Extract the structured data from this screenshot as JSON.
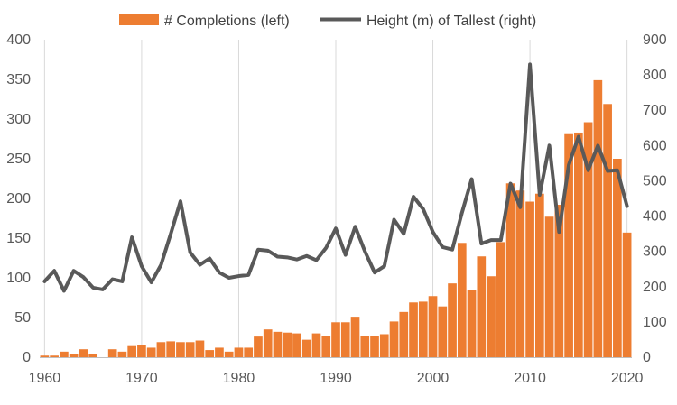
{
  "chart_data": {
    "type": "bar+line",
    "title": "",
    "xlabel": "",
    "ylabel_left": "",
    "ylabel_right": "",
    "x": [
      1960,
      1961,
      1962,
      1963,
      1964,
      1965,
      1966,
      1967,
      1968,
      1969,
      1970,
      1971,
      1972,
      1973,
      1974,
      1975,
      1976,
      1977,
      1978,
      1979,
      1980,
      1981,
      1982,
      1983,
      1984,
      1985,
      1986,
      1987,
      1988,
      1989,
      1990,
      1991,
      1992,
      1993,
      1994,
      1995,
      1996,
      1997,
      1998,
      1999,
      2000,
      2001,
      2002,
      2003,
      2004,
      2005,
      2006,
      2007,
      2008,
      2009,
      2010,
      2011,
      2012,
      2013,
      2014,
      2015,
      2016,
      2017,
      2018,
      2019,
      2020
    ],
    "xlim": [
      1959.5,
      2020.5
    ],
    "xticks": [
      "1960",
      "1970",
      "1980",
      "1990",
      "2000",
      "2010",
      "2020"
    ],
    "left_axis": {
      "ylim": [
        0,
        400
      ],
      "ticks": [
        "0",
        "50",
        "100",
        "150",
        "200",
        "250",
        "300",
        "350",
        "400"
      ]
    },
    "right_axis": {
      "ylim": [
        0,
        900
      ],
      "ticks": [
        "0",
        "100",
        "200",
        "300",
        "400",
        "500",
        "600",
        "700",
        "800",
        "900"
      ]
    },
    "series": [
      {
        "name": "# Completions (left)",
        "type": "bar",
        "axis": "left",
        "color": "#ED7D31",
        "values": [
          2,
          2,
          7,
          4,
          10,
          4,
          0,
          10,
          7,
          14,
          15,
          12,
          19,
          20,
          19,
          19,
          21,
          9,
          12,
          7,
          12,
          12,
          26,
          35,
          32,
          31,
          30,
          22,
          30,
          27,
          44,
          44,
          51,
          27,
          27,
          29,
          45,
          57,
          69,
          70,
          77,
          64,
          93,
          144,
          85,
          127,
          102,
          145,
          219,
          210,
          196,
          206,
          177,
          192,
          281,
          283,
          296,
          349,
          319,
          250,
          157
        ]
      },
      {
        "name": "Height (m) of Tallest (right)",
        "type": "line",
        "axis": "right",
        "color": "#595959",
        "values": [
          215,
          245,
          188,
          245,
          227,
          197,
          192,
          221,
          215,
          340,
          258,
          212,
          262,
          350,
          442,
          297,
          262,
          280,
          240,
          225,
          230,
          233,
          305,
          302,
          285,
          283,
          277,
          287,
          275,
          310,
          365,
          290,
          370,
          300,
          240,
          258,
          390,
          350,
          455,
          420,
          355,
          312,
          305,
          410,
          505,
          322,
          332,
          332,
          492,
          425,
          830,
          460,
          600,
          355,
          545,
          625,
          530,
          600,
          528,
          530,
          428
        ]
      }
    ],
    "legend_position": "top",
    "grid": {
      "vertical": true,
      "horizontal": false
    }
  }
}
